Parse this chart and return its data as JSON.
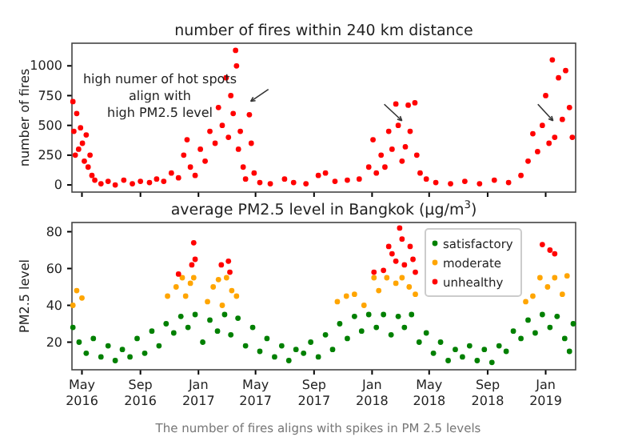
{
  "chart_data": [
    {
      "type": "scatter",
      "title": "number of fires within 240 km distance",
      "ylabel": "number of fires",
      "annotations": [
        "high numer of hot spots\nalign with\nhigh PM2.5 level"
      ],
      "marker": "circle",
      "grid": false,
      "tick_labels": "y",
      "xlim": [
        "2016-04-10",
        "2019-03-05"
      ],
      "xticks": [
        {
          "value": "2016-05",
          "label": null
        },
        {
          "value": "2016-09",
          "label": null
        },
        {
          "value": "2017-01",
          "label": null
        },
        {
          "value": "2017-05",
          "label": null
        },
        {
          "value": "2017-09",
          "label": null
        },
        {
          "value": "2018-01",
          "label": null
        },
        {
          "value": "2018-05",
          "label": null
        },
        {
          "value": "2018-09",
          "label": null
        },
        {
          "value": "2019-01",
          "label": null
        }
      ],
      "ylim": [
        -60,
        1190
      ],
      "yticks": [
        0,
        250,
        500,
        750,
        1000
      ],
      "series": [
        {
          "color": "#ff0000",
          "x": [
            "2016-04-12",
            "2016-04-14",
            "2016-04-17",
            "2016-04-20",
            "2016-04-24",
            "2016-04-28",
            "2016-05-02",
            "2016-05-06",
            "2016-05-10",
            "2016-05-14",
            "2016-05-18",
            "2016-05-22",
            "2016-05-28",
            "2016-06-10",
            "2016-06-25",
            "2016-07-10",
            "2016-07-28",
            "2016-08-15",
            "2016-09-01",
            "2016-09-20",
            "2016-10-05",
            "2016-10-20",
            "2016-11-05",
            "2016-11-20",
            "2016-12-01",
            "2016-12-08",
            "2016-12-15",
            "2016-12-25",
            "2017-01-05",
            "2017-01-15",
            "2017-01-25",
            "2017-02-05",
            "2017-02-12",
            "2017-02-20",
            "2017-02-28",
            "2017-03-05",
            "2017-03-10",
            "2017-03-15",
            "2017-03-20",
            "2017-03-22",
            "2017-03-26",
            "2017-03-30",
            "2017-04-05",
            "2017-04-10",
            "2017-04-18",
            "2017-04-22",
            "2017-04-28",
            "2017-05-10",
            "2017-06-01",
            "2017-07-01",
            "2017-07-20",
            "2017-08-15",
            "2017-09-10",
            "2017-09-25",
            "2017-10-15",
            "2017-11-10",
            "2017-12-05",
            "2017-12-25",
            "2018-01-03",
            "2018-01-10",
            "2018-01-20",
            "2018-01-28",
            "2018-02-05",
            "2018-02-12",
            "2018-02-20",
            "2018-02-25",
            "2018-03-05",
            "2018-03-12",
            "2018-03-18",
            "2018-03-22",
            "2018-04-01",
            "2018-04-05",
            "2018-04-12",
            "2018-04-25",
            "2018-05-15",
            "2018-06-15",
            "2018-07-15",
            "2018-08-15",
            "2018-09-15",
            "2018-10-15",
            "2018-11-10",
            "2018-11-25",
            "2018-12-05",
            "2018-12-15",
            "2018-12-25",
            "2019-01-01",
            "2019-01-08",
            "2019-01-15",
            "2019-01-20",
            "2019-01-28",
            "2019-02-05",
            "2019-02-12",
            "2019-02-20",
            "2019-02-26"
          ],
          "values": [
            700,
            450,
            250,
            600,
            300,
            480,
            350,
            200,
            420,
            150,
            250,
            80,
            40,
            10,
            30,
            0,
            40,
            10,
            30,
            20,
            50,
            30,
            100,
            60,
            250,
            380,
            150,
            80,
            300,
            200,
            450,
            350,
            650,
            500,
            900,
            400,
            750,
            600,
            1130,
            1000,
            300,
            450,
            150,
            50,
            590,
            350,
            100,
            20,
            10,
            50,
            20,
            10,
            80,
            100,
            30,
            40,
            50,
            150,
            380,
            100,
            250,
            150,
            450,
            300,
            680,
            500,
            200,
            320,
            670,
            450,
            690,
            250,
            100,
            50,
            20,
            10,
            30,
            10,
            40,
            20,
            80,
            200,
            430,
            280,
            500,
            750,
            350,
            1050,
            400,
            900,
            550,
            960,
            650,
            400
          ]
        }
      ]
    },
    {
      "type": "scatter",
      "title": "average PM2.5 level in Bangkok (μg/m$^{3}$)",
      "ylabel": "PM2.5 level",
      "annotations": [
        "The number of fires aligns with spikes in PM 2.5 levels"
      ],
      "marker": "circle",
      "grid": false,
      "legend": "top right",
      "xlim": [
        "2016-04-10",
        "2019-03-05"
      ],
      "xticks": [
        {
          "value": "2016-05",
          "label": "May\n2016"
        },
        {
          "value": "2016-09",
          "label": "Sep\n2016"
        },
        {
          "value": "2017-01",
          "label": "Jan\n2017"
        },
        {
          "value": "2017-05",
          "label": "May\n2017"
        },
        {
          "value": "2017-09",
          "label": "Sep\n2017"
        },
        {
          "value": "2018-01",
          "label": "Jan\n2018"
        },
        {
          "value": "2018-05",
          "label": "May\n2018"
        },
        {
          "value": "2018-09",
          "label": "Sep\n2018"
        },
        {
          "value": "2019-01",
          "label": "Jan\n2019"
        }
      ],
      "ylim": [
        5,
        85
      ],
      "yticks": [
        20,
        40,
        60,
        80
      ],
      "series": [
        {
          "name": "satisfactory",
          "color": "#008000",
          "x": [
            "2016-04-12",
            "2016-04-25",
            "2016-05-10",
            "2016-05-25",
            "2016-06-10",
            "2016-06-25",
            "2016-07-10",
            "2016-07-25",
            "2016-08-10",
            "2016-08-25",
            "2016-09-10",
            "2016-09-25",
            "2016-10-10",
            "2016-10-25",
            "2016-11-10",
            "2016-11-25",
            "2016-12-10",
            "2016-12-25",
            "2017-01-10",
            "2017-01-25",
            "2017-02-10",
            "2017-02-25",
            "2017-03-10",
            "2017-03-25",
            "2017-04-10",
            "2017-04-25",
            "2017-05-10",
            "2017-05-25",
            "2017-06-10",
            "2017-06-25",
            "2017-07-10",
            "2017-07-25",
            "2017-08-10",
            "2017-08-25",
            "2017-09-10",
            "2017-09-25",
            "2017-10-10",
            "2017-10-25",
            "2017-11-10",
            "2017-11-25",
            "2017-12-10",
            "2017-12-25",
            "2018-01-10",
            "2018-01-25",
            "2018-02-10",
            "2018-02-25",
            "2018-03-10",
            "2018-03-25",
            "2018-04-10",
            "2018-04-25",
            "2018-05-10",
            "2018-05-25",
            "2018-06-10",
            "2018-06-25",
            "2018-07-10",
            "2018-07-25",
            "2018-08-10",
            "2018-08-25",
            "2018-09-10",
            "2018-09-25",
            "2018-10-10",
            "2018-10-25",
            "2018-11-10",
            "2018-11-25",
            "2018-12-10",
            "2018-12-25",
            "2019-01-10",
            "2019-01-25",
            "2019-02-10",
            "2019-02-20",
            "2019-02-28"
          ],
          "values": [
            28,
            20,
            14,
            22,
            12,
            18,
            10,
            16,
            12,
            22,
            14,
            26,
            18,
            30,
            25,
            34,
            28,
            35,
            20,
            32,
            26,
            35,
            24,
            33,
            18,
            28,
            15,
            22,
            12,
            18,
            10,
            16,
            14,
            20,
            12,
            24,
            16,
            30,
            22,
            34,
            26,
            35,
            28,
            35,
            24,
            34,
            28,
            35,
            20,
            25,
            14,
            20,
            10,
            16,
            12,
            18,
            10,
            16,
            9,
            18,
            15,
            26,
            22,
            32,
            25,
            35,
            28,
            34,
            22,
            15,
            30
          ]
        },
        {
          "name": "moderate",
          "color": "#ffa500",
          "x": [
            "2016-04-12",
            "2016-04-20",
            "2016-05-01",
            "2016-10-28",
            "2016-11-15",
            "2016-11-28",
            "2016-12-05",
            "2016-12-15",
            "2016-12-22",
            "2017-01-20",
            "2017-02-01",
            "2017-02-12",
            "2017-02-20",
            "2017-03-01",
            "2017-03-12",
            "2017-03-22",
            "2017-10-20",
            "2017-11-08",
            "2017-11-25",
            "2017-12-15",
            "2018-01-05",
            "2018-01-15",
            "2018-02-01",
            "2018-02-20",
            "2018-03-05",
            "2018-03-20",
            "2018-04-02",
            "2018-11-20",
            "2018-12-05",
            "2018-12-20",
            "2019-01-05",
            "2019-01-20",
            "2019-02-05",
            "2019-02-15"
          ],
          "values": [
            40,
            48,
            44,
            45,
            50,
            55,
            45,
            52,
            55,
            42,
            50,
            54,
            40,
            55,
            48,
            45,
            42,
            45,
            46,
            40,
            55,
            48,
            55,
            52,
            55,
            50,
            46,
            42,
            45,
            55,
            50,
            55,
            46,
            56
          ]
        },
        {
          "name": "unhealthy",
          "color": "#ff0000",
          "x": [
            "2016-11-20",
            "2016-12-18",
            "2016-12-22",
            "2016-12-25",
            "2017-02-18",
            "2017-03-05",
            "2017-03-08",
            "2018-01-05",
            "2018-01-25",
            "2018-02-05",
            "2018-02-12",
            "2018-02-20",
            "2018-02-28",
            "2018-03-05",
            "2018-03-10",
            "2018-03-22",
            "2018-03-28",
            "2018-04-02",
            "2018-12-25",
            "2019-01-10",
            "2019-01-20"
          ],
          "values": [
            57,
            62,
            74,
            65,
            62,
            64,
            58,
            58,
            59,
            72,
            68,
            64,
            82,
            76,
            62,
            72,
            65,
            58,
            73,
            70,
            68
          ]
        }
      ]
    }
  ]
}
